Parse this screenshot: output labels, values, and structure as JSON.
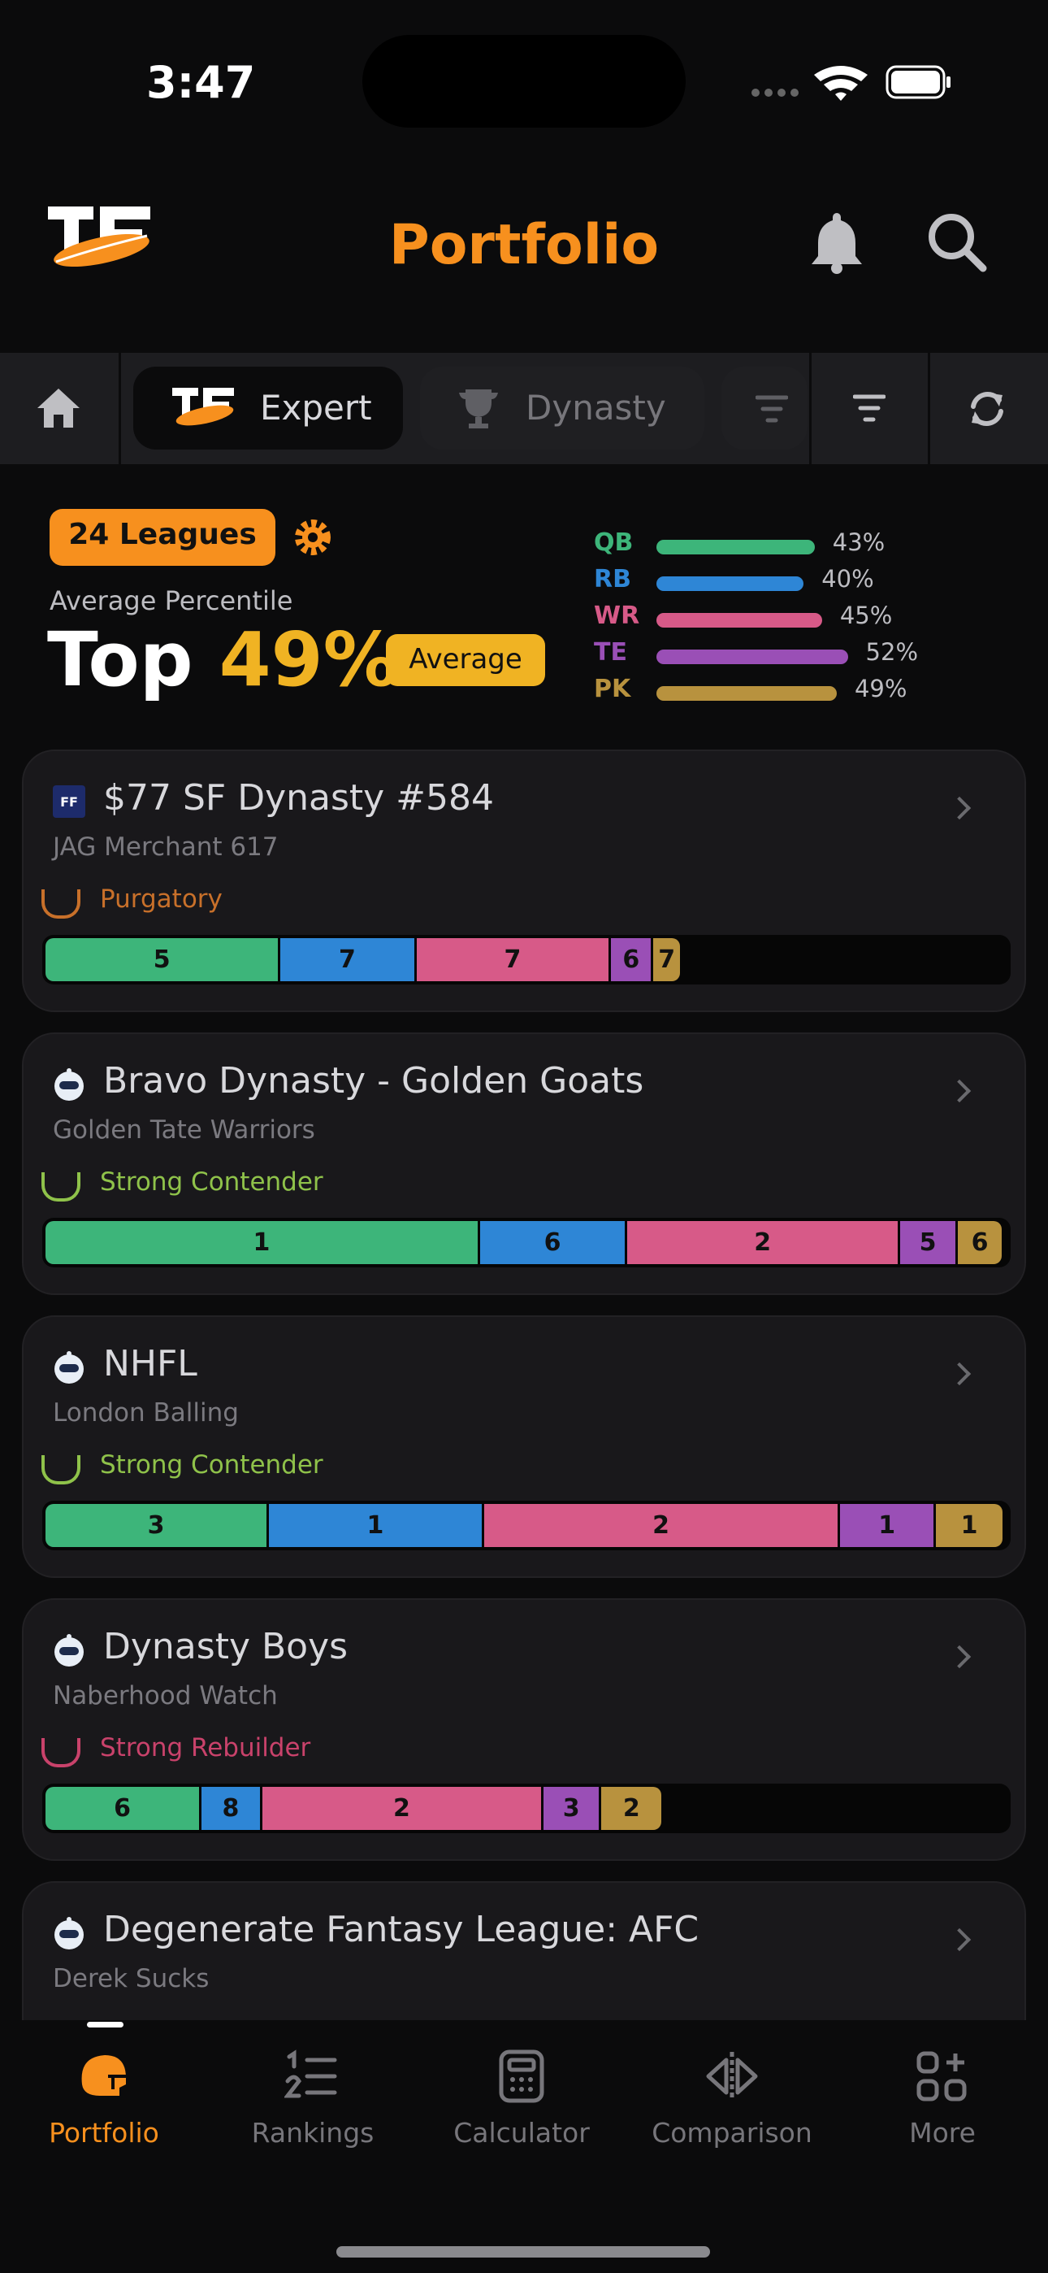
{
  "status_bar": {
    "time": "3:47"
  },
  "header": {
    "title": "Portfolio"
  },
  "tabs": [
    "Expert",
    "Dynasty"
  ],
  "summary": {
    "leagues": "24 Leagues",
    "percentile_label": "Average Percentile",
    "top": "Top",
    "percentile": "49%",
    "rating": "Average",
    "positions": [
      {
        "name": "QB",
        "value": 43,
        "label": "43%",
        "color": "#3db57a"
      },
      {
        "name": "RB",
        "value": 40,
        "label": "40%",
        "color": "#2e86d6"
      },
      {
        "name": "WR",
        "value": 45,
        "label": "45%",
        "color": "#d75a88"
      },
      {
        "name": "TE",
        "value": 52,
        "label": "52%",
        "color": "#9a4fb6"
      },
      {
        "name": "PK",
        "value": 49,
        "label": "49%",
        "color": "#b8923e"
      }
    ]
  },
  "leagues": [
    {
      "name": "$77 SF Dynasty #584",
      "team": "JAG Merchant 617",
      "status": "Purgatory",
      "status_color": "#c8702a",
      "segments": [
        {
          "rank": 5,
          "size": 24.4
        },
        {
          "rank": 7,
          "size": 14.1
        },
        {
          "rank": 7,
          "size": 20.2
        },
        {
          "rank": 6,
          "size": 4.4
        },
        {
          "rank": 7,
          "size": 3.0
        }
      ]
    },
    {
      "name": "Bravo Dynasty - Golden Goats",
      "team": "Golden Tate Warriors",
      "status": "Strong Contender",
      "status_color": "#8fc24a",
      "segments": [
        {
          "rank": 1,
          "size": 45.1
        },
        {
          "rank": 6,
          "size": 15.3
        },
        {
          "rank": 2,
          "size": 28.3
        },
        {
          "rank": 5,
          "size": 6.0
        },
        {
          "rank": 6,
          "size": 4.8
        }
      ]
    },
    {
      "name": "NHFL",
      "team": "London Balling",
      "status": "Strong Contender",
      "status_color": "#8fc24a",
      "segments": [
        {
          "rank": 3,
          "size": 23.2
        },
        {
          "rank": 1,
          "size": 22.3
        },
        {
          "rank": 2,
          "size": 37.0
        },
        {
          "rank": 1,
          "size": 9.9
        },
        {
          "rank": 1,
          "size": 7.2
        }
      ]
    },
    {
      "name": "Dynasty Boys",
      "team": "Naberhood Watch",
      "status": "Strong Rebuilder",
      "status_color": "#c9426b",
      "segments": [
        {
          "rank": 6,
          "size": 16.2
        },
        {
          "rank": 8,
          "size": 6.3
        },
        {
          "rank": 2,
          "size": 29.2
        },
        {
          "rank": 3,
          "size": 6.0
        },
        {
          "rank": 2,
          "size": 6.5
        }
      ]
    },
    {
      "name": "Degenerate Fantasy League: AFC",
      "team": "Derek Sucks"
    }
  ],
  "nav": [
    "Portfolio",
    "Rankings",
    "Calculator",
    "Comparison",
    "More"
  ]
}
